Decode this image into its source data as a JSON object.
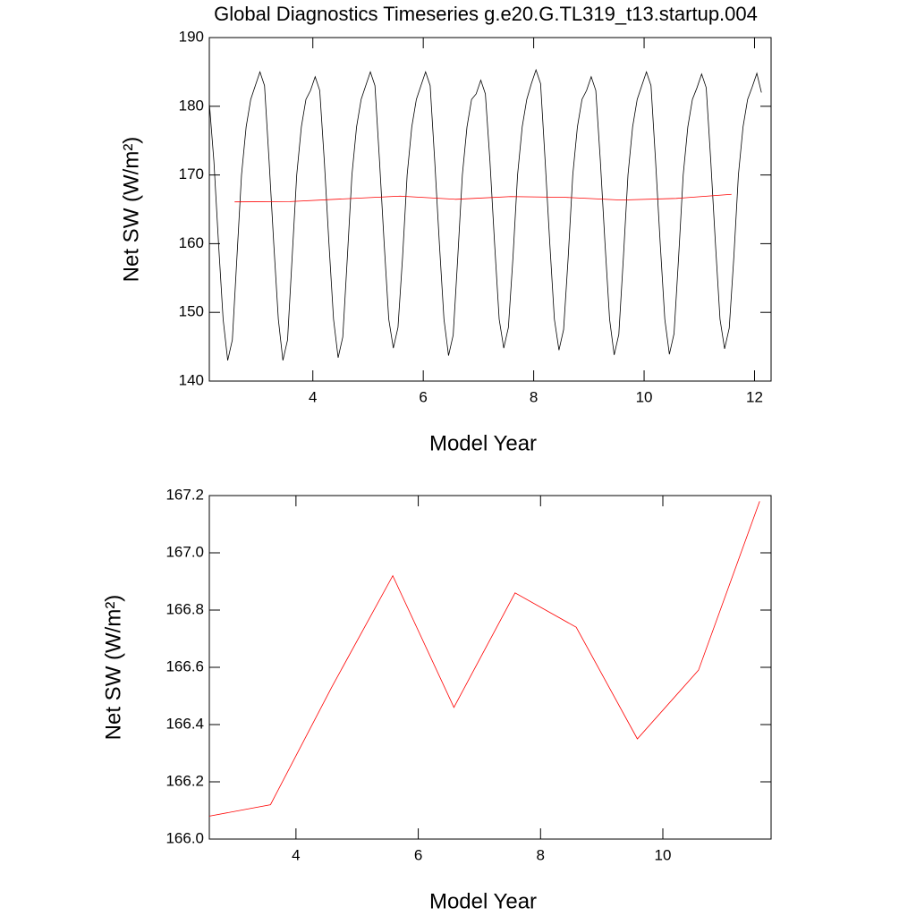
{
  "chart_data": [
    {
      "type": "line",
      "title": "Global Diagnostics Timeseries g.e20.G.TL319_t13.startup.004",
      "x_label": "Model Year",
      "y_label": "Net SW (W/m²)",
      "xlim": [
        2.125,
        12.3
      ],
      "xticks": [
        4,
        6,
        8,
        10,
        12
      ],
      "ylim": [
        140,
        190
      ],
      "yticks": [
        140,
        150,
        160,
        170,
        180,
        190
      ],
      "series": [
        {
          "color": "#000000",
          "x": [
            2.125,
            2.208,
            2.292,
            2.375,
            2.458,
            2.542,
            2.625,
            2.708,
            2.792,
            2.875,
            2.958,
            3.042,
            3.125,
            3.208,
            3.292,
            3.375,
            3.458,
            3.542,
            3.625,
            3.708,
            3.792,
            3.875,
            3.958,
            4.042,
            4.125,
            4.208,
            4.292,
            4.375,
            4.458,
            4.542,
            4.625,
            4.708,
            4.792,
            4.875,
            4.958,
            5.042,
            5.125,
            5.208,
            5.292,
            5.375,
            5.458,
            5.542,
            5.625,
            5.708,
            5.792,
            5.875,
            5.958,
            6.042,
            6.125,
            6.208,
            6.292,
            6.375,
            6.458,
            6.542,
            6.625,
            6.708,
            6.792,
            6.875,
            6.958,
            7.042,
            7.125,
            7.208,
            7.292,
            7.375,
            7.458,
            7.542,
            7.625,
            7.708,
            7.792,
            7.875,
            7.958,
            8.042,
            8.125,
            8.208,
            8.292,
            8.375,
            8.458,
            8.542,
            8.625,
            8.708,
            8.792,
            8.875,
            8.958,
            9.042,
            9.125,
            9.208,
            9.292,
            9.375,
            9.458,
            9.542,
            9.625,
            9.708,
            9.792,
            9.875,
            9.958,
            10.042,
            10.125,
            10.208,
            10.292,
            10.375,
            10.458,
            10.542,
            10.625,
            10.708,
            10.792,
            10.875,
            10.958,
            11.042,
            11.125,
            11.208,
            11.292,
            11.375,
            11.458,
            11.542,
            11.625,
            11.708,
            11.792,
            11.875,
            11.958,
            12.042,
            12.125
          ],
          "values": [
            180.5,
            172,
            160,
            149,
            143.0,
            146.0,
            158,
            170,
            177,
            181,
            183.0,
            185.0,
            183.0,
            172,
            160,
            149,
            143.0,
            146.0,
            158,
            170,
            177,
            181,
            182.3,
            184.3,
            182.3,
            172,
            160,
            149,
            143.4,
            146.4,
            158,
            170,
            177,
            181,
            183.0,
            185.0,
            183.0,
            172,
            160,
            149,
            144.8,
            147.8,
            158,
            170,
            177,
            181,
            183.0,
            185.0,
            183.0,
            172,
            160,
            149,
            143.7,
            146.7,
            158,
            170,
            177,
            181,
            181.8,
            183.8,
            181.8,
            172,
            160,
            149,
            144.8,
            147.8,
            158,
            170,
            177,
            181,
            183.3,
            185.3,
            183.3,
            172,
            160,
            149,
            144.5,
            147.5,
            158,
            170,
            177,
            181,
            182.3,
            184.3,
            182.3,
            172,
            160,
            149,
            143.8,
            146.8,
            158,
            170,
            177,
            181,
            183.0,
            185.0,
            183.0,
            172,
            160,
            149,
            143.9,
            146.9,
            158,
            170,
            177,
            181,
            182.7,
            184.7,
            182.7,
            172,
            160,
            149,
            144.7,
            147.7,
            158,
            170,
            177,
            181,
            182.8,
            184.8,
            182.0
          ]
        },
        {
          "color": "#ff0000",
          "x": [
            2.583,
            3.583,
            4.583,
            5.583,
            6.583,
            7.583,
            8.583,
            9.583,
            10.583,
            11.583
          ],
          "values": [
            166.08,
            166.12,
            166.53,
            166.92,
            166.46,
            166.86,
            166.74,
            166.35,
            166.59,
            167.18
          ]
        }
      ]
    },
    {
      "type": "line",
      "x_label": "Model Year",
      "y_label": "Net SW (W/m²)",
      "xlim": [
        2.583,
        11.77
      ],
      "xticks": [
        4,
        6,
        8,
        10
      ],
      "ylim": [
        166,
        167.2
      ],
      "yticks": [
        {
          "value": 166,
          "label": "166.0"
        },
        166.2,
        166.4,
        166.6,
        166.8,
        {
          "value": 167,
          "label": "167.0"
        },
        167.2
      ],
      "series": [
        {
          "color": "#ff0000",
          "x": [
            2.583,
            3.583,
            4.583,
            5.583,
            6.583,
            7.583,
            8.583,
            9.583,
            10.583,
            11.583
          ],
          "values": [
            166.08,
            166.12,
            166.53,
            166.92,
            166.46,
            166.86,
            166.74,
            166.35,
            166.59,
            167.18
          ]
        }
      ]
    }
  ]
}
